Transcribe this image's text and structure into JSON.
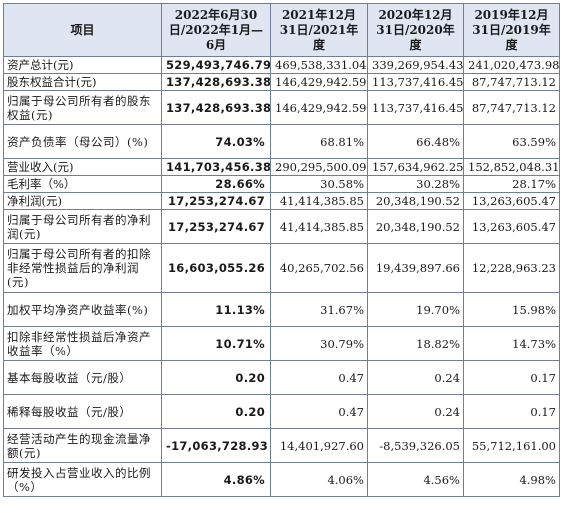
{
  "header": {
    "item": "项目",
    "col1": "2022年6月30日/2022年1月—6月",
    "col2": "2021年12月31日/2021年度",
    "col3": "2020年12月31日/2020年度",
    "col4": "2019年12月31日/2019年度"
  },
  "rows": [
    {
      "label": "资产总计(元)",
      "v1": "529,493,746.79",
      "v2": "469,538,331.04",
      "v3": "339,269,954.43",
      "v4": "241,020,473.98"
    },
    {
      "label": "股东权益合计(元)",
      "v1": "137,428,693.38",
      "v2": "146,429,942.59",
      "v3": "113,737,416.45",
      "v4": "87,747,713.12"
    },
    {
      "label": "归属于母公司所有者的股东权益(元)",
      "v1": "137,428,693.38",
      "v2": "146,429,942.59",
      "v3": "113,737,416.45",
      "v4": "87,747,713.12"
    },
    {
      "label": "资产负债率（母公司）(%)",
      "v1": "74.03%",
      "v2": "68.81%",
      "v3": "66.48%",
      "v4": "63.59%"
    },
    {
      "label": "营业收入(元)",
      "v1": "141,703,456.38",
      "v2": "290,295,500.09",
      "v3": "157,634,962.25",
      "v4": "152,852,048.31"
    },
    {
      "label": "毛利率（%）",
      "v1": "28.66%",
      "v2": "30.58%",
      "v3": "30.28%",
      "v4": "28.17%"
    },
    {
      "label": "净利润(元)",
      "v1": "17,253,274.67",
      "v2": "41,414,385.85",
      "v3": "20,348,190.52",
      "v4": "13,263,605.47"
    },
    {
      "label": "归属于母公司所有者的净利润(元)",
      "v1": "17,253,274.67",
      "v2": "41,414,385.85",
      "v3": "20,348,190.52",
      "v4": "13,263,605.47"
    },
    {
      "label": "归属于母公司所有者的扣除非经常性损益后的净利润(元)",
      "v1": "16,603,055.26",
      "v2": "40,265,702.56",
      "v3": "19,439,897.66",
      "v4": "12,228,963.23"
    },
    {
      "label": "加权平均净资产收益率(%)",
      "v1": "11.13%",
      "v2": "31.67%",
      "v3": "19.70%",
      "v4": "15.98%"
    },
    {
      "label": "扣除非经常性损益后净资产收益率（%）",
      "v1": "10.71%",
      "v2": "30.79%",
      "v3": "18.82%",
      "v4": "14.73%"
    },
    {
      "label": "基本每股收益（元/股）",
      "v1": "0.20",
      "v2": "0.47",
      "v3": "0.24",
      "v4": "0.17"
    },
    {
      "label": "稀释每股收益（元/股）",
      "v1": "0.20",
      "v2": "0.47",
      "v3": "0.24",
      "v4": "0.17"
    },
    {
      "label": "经营活动产生的现金流量净额(元)",
      "v1": "-17,063,728.93",
      "v2": "14,401,927.60",
      "v3": "-8,539,326.05",
      "v4": "55,712,161.00"
    },
    {
      "label": "研发投入占营业收入的比例（%）",
      "v1": "4.86%",
      "v2": "4.06%",
      "v3": "4.56%",
      "v4": "4.98%"
    }
  ]
}
